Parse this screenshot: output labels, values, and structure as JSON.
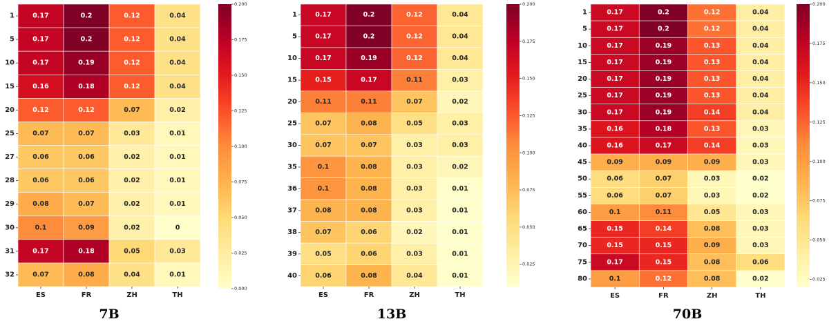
{
  "chart_data": [
    {
      "type": "heatmap",
      "title": "7B",
      "columns": [
        "ES",
        "FR",
        "ZH",
        "TH"
      ],
      "rows": [
        "1",
        "5",
        "10",
        "15",
        "20",
        "25",
        "27",
        "28",
        "29",
        "30",
        "31",
        "32"
      ],
      "values": [
        [
          0.17,
          0.2,
          0.12,
          0.04
        ],
        [
          0.17,
          0.2,
          0.12,
          0.04
        ],
        [
          0.17,
          0.19,
          0.12,
          0.04
        ],
        [
          0.16,
          0.18,
          0.12,
          0.04
        ],
        [
          0.12,
          0.12,
          0.07,
          0.02
        ],
        [
          0.07,
          0.07,
          0.03,
          0.01
        ],
        [
          0.06,
          0.06,
          0.02,
          0.01
        ],
        [
          0.06,
          0.06,
          0.02,
          0.01
        ],
        [
          0.08,
          0.07,
          0.02,
          0.01
        ],
        [
          0.1,
          0.09,
          0.02,
          0
        ],
        [
          0.17,
          0.18,
          0.05,
          0.03
        ],
        [
          0.07,
          0.08,
          0.04,
          0.01
        ]
      ],
      "colorbar": {
        "min": 0.0,
        "max": 0.2,
        "ticks": [
          "0.000",
          "0.025",
          "0.050",
          "0.075",
          "0.100",
          "0.125",
          "0.150",
          "0.175",
          "0.200"
        ]
      },
      "colormap": "YlOrRd"
    },
    {
      "type": "heatmap",
      "title": "13B",
      "columns": [
        "ES",
        "FR",
        "ZH",
        "TH"
      ],
      "rows": [
        "1",
        "5",
        "10",
        "15",
        "20",
        "25",
        "30",
        "35",
        "36",
        "37",
        "38",
        "39",
        "40"
      ],
      "values": [
        [
          0.17,
          0.2,
          0.12,
          0.04
        ],
        [
          0.17,
          0.2,
          0.12,
          0.04
        ],
        [
          0.17,
          0.19,
          0.12,
          0.04
        ],
        [
          0.15,
          0.17,
          0.11,
          0.03
        ],
        [
          0.11,
          0.11,
          0.07,
          0.02
        ],
        [
          0.07,
          0.08,
          0.05,
          0.03
        ],
        [
          0.07,
          0.07,
          0.03,
          0.03
        ],
        [
          0.1,
          0.08,
          0.03,
          0.02
        ],
        [
          0.1,
          0.08,
          0.03,
          0.01
        ],
        [
          0.08,
          0.08,
          0.03,
          0.01
        ],
        [
          0.07,
          0.06,
          0.02,
          0.01
        ],
        [
          0.05,
          0.06,
          0.03,
          0.01
        ],
        [
          0.06,
          0.08,
          0.04,
          0.01
        ]
      ],
      "colorbar": {
        "min": 0.01,
        "max": 0.2,
        "ticks": [
          "0.025",
          "0.050",
          "0.075",
          "0.100",
          "0.125",
          "0.150",
          "0.175",
          "0.200"
        ]
      },
      "colormap": "YlOrRd"
    },
    {
      "type": "heatmap",
      "title": "70B",
      "columns": [
        "ES",
        "FR",
        "ZH",
        "TH"
      ],
      "rows": [
        "1",
        "5",
        "10",
        "15",
        "20",
        "25",
        "30",
        "35",
        "40",
        "45",
        "50",
        "55",
        "60",
        "65",
        "70",
        "75",
        "80"
      ],
      "values": [
        [
          0.17,
          0.2,
          0.12,
          0.04
        ],
        [
          0.17,
          0.2,
          0.12,
          0.04
        ],
        [
          0.17,
          0.19,
          0.13,
          0.04
        ],
        [
          0.17,
          0.19,
          0.13,
          0.04
        ],
        [
          0.17,
          0.19,
          0.13,
          0.04
        ],
        [
          0.17,
          0.19,
          0.13,
          0.04
        ],
        [
          0.17,
          0.19,
          0.14,
          0.04
        ],
        [
          0.16,
          0.18,
          0.13,
          0.03
        ],
        [
          0.16,
          0.17,
          0.14,
          0.03
        ],
        [
          0.09,
          0.09,
          0.09,
          0.03
        ],
        [
          0.06,
          0.07,
          0.03,
          0.02
        ],
        [
          0.06,
          0.07,
          0.03,
          0.02
        ],
        [
          0.1,
          0.11,
          0.05,
          0.03
        ],
        [
          0.15,
          0.14,
          0.08,
          0.03
        ],
        [
          0.15,
          0.15,
          0.09,
          0.03
        ],
        [
          0.17,
          0.15,
          0.08,
          0.06
        ],
        [
          0.1,
          0.12,
          0.08,
          0.02
        ]
      ],
      "colorbar": {
        "min": 0.02,
        "max": 0.2,
        "ticks": [
          "0.025",
          "0.050",
          "0.075",
          "0.100",
          "0.125",
          "0.150",
          "0.175",
          "0.200"
        ]
      },
      "colormap": "YlOrRd"
    }
  ]
}
